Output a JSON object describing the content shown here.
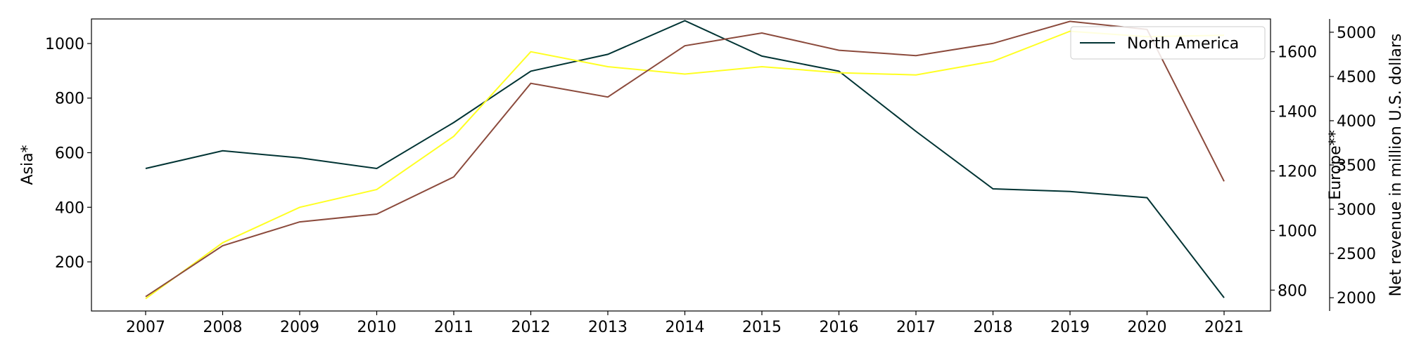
{
  "chart_data": {
    "type": "line",
    "x": [
      "2007",
      "2008",
      "2009",
      "2010",
      "2011",
      "2012",
      "2013",
      "2014",
      "2015",
      "2016",
      "2017",
      "2018",
      "2019",
      "2020",
      "2021"
    ],
    "axes": {
      "left": {
        "label": "Asia*",
        "ylim": [
          20,
          1090
        ],
        "ticks": [
          200,
          400,
          600,
          800,
          1000
        ]
      },
      "right1": {
        "label": "Europe**",
        "ylim": [
          730,
          1710
        ],
        "ticks": [
          800,
          1000,
          1200,
          1400,
          1600
        ]
      },
      "right2": {
        "label": "Net revenue in million U.S. dollars",
        "ylim": [
          1850,
          5150
        ],
        "ticks": [
          2000,
          2500,
          3000,
          3500,
          4000,
          4500,
          5000
        ]
      }
    },
    "series": [
      {
        "name": "North America",
        "axis": "right2",
        "color": "#003333",
        "values": [
          3460,
          3660,
          3580,
          3460,
          3980,
          4560,
          4750,
          5130,
          4730,
          4560,
          3880,
          3230,
          3200,
          3130,
          2000
        ]
      },
      {
        "name": "",
        "axis": "left",
        "color": "#ffff22",
        "values": [
          65,
          270,
          400,
          465,
          660,
          970,
          915,
          888,
          915,
          893,
          885,
          935,
          1045,
          1025,
          1030
        ]
      },
      {
        "name": "",
        "axis": "right1",
        "color": "#8b4a3c",
        "values": [
          778,
          949,
          1029,
          1055,
          1180,
          1494,
          1448,
          1620,
          1663,
          1605,
          1587,
          1628,
          1702,
          1675,
          1165
        ]
      }
    ],
    "legend": {
      "entries": [
        "North America"
      ],
      "placement": "top-right"
    },
    "grid": false
  }
}
